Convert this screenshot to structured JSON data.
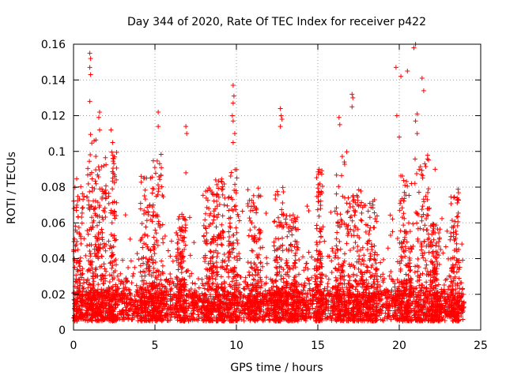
{
  "chart_data": {
    "type": "scatter",
    "title": "Day 344 of 2020, Rate Of TEC Index for receiver p422",
    "xlabel": "GPS time / hours",
    "ylabel": "ROTI / TECUs",
    "xlim": [
      0,
      25
    ],
    "ylim": [
      0,
      0.16
    ],
    "xticks": [
      "0",
      "5",
      "10",
      "15",
      "20",
      "25"
    ],
    "yticks": [
      "0",
      "0.02",
      "0.04",
      "0.06",
      "0.08",
      "0.1",
      "0.12",
      "0.14",
      "0.16"
    ],
    "grid": true,
    "legend": "none",
    "marker": "plus",
    "color": "#ff0000",
    "x_data_range": [
      0,
      24
    ],
    "baseline_band": [
      0.005,
      0.02
    ],
    "notable_points": [
      {
        "x": 1.0,
        "y": 0.155
      },
      {
        "x": 1.05,
        "y": 0.152
      },
      {
        "x": 1.0,
        "y": 0.147
      },
      {
        "x": 1.05,
        "y": 0.143
      },
      {
        "x": 1.0,
        "y": 0.128
      },
      {
        "x": 1.6,
        "y": 0.122
      },
      {
        "x": 1.55,
        "y": 0.119
      },
      {
        "x": 1.6,
        "y": 0.112
      },
      {
        "x": 2.3,
        "y": 0.112
      },
      {
        "x": 2.4,
        "y": 0.105
      },
      {
        "x": 5.2,
        "y": 0.122
      },
      {
        "x": 5.2,
        "y": 0.114
      },
      {
        "x": 6.9,
        "y": 0.114
      },
      {
        "x": 6.95,
        "y": 0.11
      },
      {
        "x": 6.9,
        "y": 0.088
      },
      {
        "x": 9.8,
        "y": 0.137
      },
      {
        "x": 9.85,
        "y": 0.131
      },
      {
        "x": 9.8,
        "y": 0.127
      },
      {
        "x": 9.75,
        "y": 0.12
      },
      {
        "x": 9.8,
        "y": 0.117
      },
      {
        "x": 9.9,
        "y": 0.11
      },
      {
        "x": 9.8,
        "y": 0.105
      },
      {
        "x": 12.7,
        "y": 0.124
      },
      {
        "x": 12.75,
        "y": 0.12
      },
      {
        "x": 12.8,
        "y": 0.118
      },
      {
        "x": 12.7,
        "y": 0.114
      },
      {
        "x": 16.3,
        "y": 0.119
      },
      {
        "x": 16.35,
        "y": 0.115
      },
      {
        "x": 17.1,
        "y": 0.132
      },
      {
        "x": 17.15,
        "y": 0.13
      },
      {
        "x": 17.1,
        "y": 0.125
      },
      {
        "x": 19.8,
        "y": 0.147
      },
      {
        "x": 20.1,
        "y": 0.142
      },
      {
        "x": 20.5,
        "y": 0.145
      },
      {
        "x": 20.9,
        "y": 0.158
      },
      {
        "x": 21.0,
        "y": 0.16
      },
      {
        "x": 21.4,
        "y": 0.141
      },
      {
        "x": 21.5,
        "y": 0.134
      },
      {
        "x": 21.1,
        "y": 0.121
      },
      {
        "x": 21.0,
        "y": 0.117
      },
      {
        "x": 21.1,
        "y": 0.11
      },
      {
        "x": 19.85,
        "y": 0.12
      },
      {
        "x": 20.0,
        "y": 0.108
      },
      {
        "x": 22.2,
        "y": 0.09
      }
    ],
    "activity_clusters": [
      {
        "x_center": 0.3,
        "width": 0.35,
        "peak": 0.085
      },
      {
        "x_center": 1.1,
        "width": 0.3,
        "peak": 0.11
      },
      {
        "x_center": 1.7,
        "width": 0.3,
        "peak": 0.1
      },
      {
        "x_center": 2.4,
        "width": 0.25,
        "peak": 0.1
      },
      {
        "x_center": 4.5,
        "width": 0.4,
        "peak": 0.09
      },
      {
        "x_center": 5.2,
        "width": 0.35,
        "peak": 0.1
      },
      {
        "x_center": 6.6,
        "width": 0.3,
        "peak": 0.065
      },
      {
        "x_center": 8.3,
        "width": 0.35,
        "peak": 0.08
      },
      {
        "x_center": 9.0,
        "width": 0.3,
        "peak": 0.085
      },
      {
        "x_center": 9.8,
        "width": 0.3,
        "peak": 0.09
      },
      {
        "x_center": 11.1,
        "width": 0.4,
        "peak": 0.08
      },
      {
        "x_center": 12.6,
        "width": 0.3,
        "peak": 0.08
      },
      {
        "x_center": 13.4,
        "width": 0.4,
        "peak": 0.065
      },
      {
        "x_center": 15.1,
        "width": 0.2,
        "peak": 0.09
      },
      {
        "x_center": 16.5,
        "width": 0.45,
        "peak": 0.1
      },
      {
        "x_center": 17.4,
        "width": 0.45,
        "peak": 0.08
      },
      {
        "x_center": 18.3,
        "width": 0.35,
        "peak": 0.075
      },
      {
        "x_center": 20.4,
        "width": 0.4,
        "peak": 0.09
      },
      {
        "x_center": 21.4,
        "width": 0.45,
        "peak": 0.1
      },
      {
        "x_center": 22.2,
        "width": 0.3,
        "peak": 0.06
      },
      {
        "x_center": 23.4,
        "width": 0.3,
        "peak": 0.08
      }
    ]
  }
}
